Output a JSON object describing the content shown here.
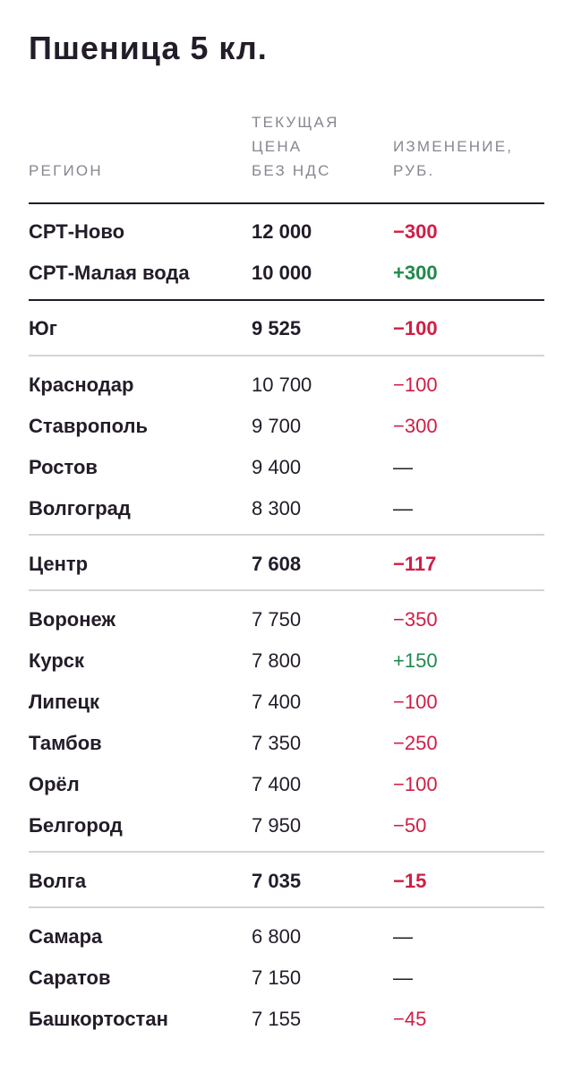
{
  "title": "Пшеница 5 кл.",
  "headers": {
    "region": "РЕГИОН",
    "price": "ТЕКУЩАЯ\nЦЕНА\nБЕЗ НДС",
    "change": "ИЗМЕНЕНИЕ,\nРУБ."
  },
  "colors": {
    "negative": "#d21d46",
    "positive": "#1f8a4c",
    "text": "#231c29"
  },
  "rows": [
    {
      "region": "СРТ-Ново",
      "price": "12 000",
      "change": "−300",
      "trend": "neg",
      "bold": true
    },
    {
      "region": "СРТ-Малая вода",
      "price": "10 000",
      "change": "+300",
      "trend": "pos",
      "bold": true
    },
    {
      "region": "Юг",
      "price": "9 525",
      "change": "−100",
      "trend": "neg",
      "bold": true
    },
    {
      "region": "Краснодар",
      "price": "10 700",
      "change": "−100",
      "trend": "neg",
      "bold": false
    },
    {
      "region": "Ставрополь",
      "price": "9 700",
      "change": "−300",
      "trend": "neg",
      "bold": false
    },
    {
      "region": "Ростов",
      "price": "9 400",
      "change": "—",
      "trend": "neu",
      "bold": false
    },
    {
      "region": "Волгоград",
      "price": "8 300",
      "change": "—",
      "trend": "neu",
      "bold": false
    },
    {
      "region": "Центр",
      "price": "7 608",
      "change": "−117",
      "trend": "neg",
      "bold": true
    },
    {
      "region": "Воронеж",
      "price": "7 750",
      "change": "−350",
      "trend": "neg",
      "bold": false
    },
    {
      "region": "Курск",
      "price": "7 800",
      "change": "+150",
      "trend": "pos",
      "bold": false
    },
    {
      "region": "Липецк",
      "price": "7 400",
      "change": "−100",
      "trend": "neg",
      "bold": false
    },
    {
      "region": "Тамбов",
      "price": "7 350",
      "change": "−250",
      "trend": "neg",
      "bold": false
    },
    {
      "region": "Орёл",
      "price": "7 400",
      "change": "−100",
      "trend": "neg",
      "bold": false
    },
    {
      "region": "Белгород",
      "price": "7 950",
      "change": "−50",
      "trend": "neg",
      "bold": false
    },
    {
      "region": "Волга",
      "price": "7 035",
      "change": "−15",
      "trend": "neg",
      "bold": true
    },
    {
      "region": "Самара",
      "price": "6 800",
      "change": "—",
      "trend": "neu",
      "bold": false
    },
    {
      "region": "Саратов",
      "price": "7 150",
      "change": "—",
      "trend": "neu",
      "bold": false
    },
    {
      "region": "Башкортостан",
      "price": "7 155",
      "change": "−45",
      "trend": "neg",
      "bold": false
    }
  ]
}
